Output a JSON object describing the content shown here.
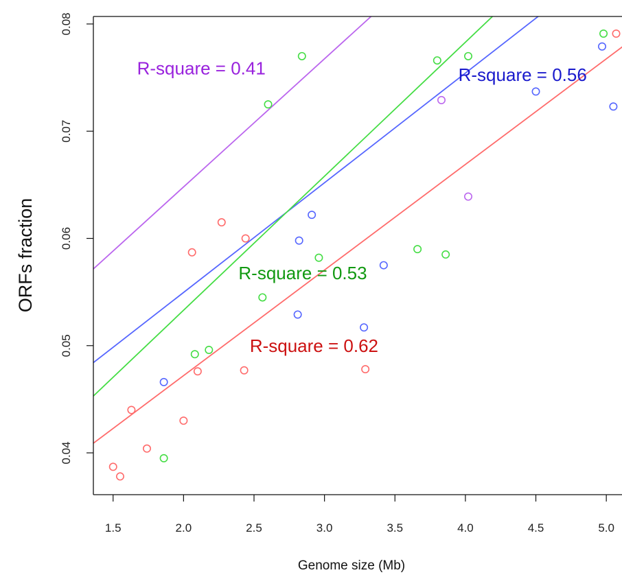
{
  "chart_data": {
    "type": "scatter",
    "title": "",
    "xlabel": "Genome size (Mb)",
    "ylabel": "ORFs fraction",
    "xlim": [
      1.36,
      5.16
    ],
    "ylim": [
      0.0361,
      0.0807
    ],
    "x_ticks": [
      1.5,
      2.0,
      2.5,
      3.0,
      3.5,
      4.0,
      4.5,
      5.0
    ],
    "x_tick_labels": [
      "1.5",
      "2.0",
      "2.5",
      "3.0",
      "3.5",
      "4.0",
      "4.5",
      "5.0"
    ],
    "y_ticks": [
      0.04,
      0.05,
      0.06,
      0.07,
      0.08
    ],
    "y_tick_labels": [
      "0.04",
      "0.05",
      "0.06",
      "0.07",
      "0.08"
    ],
    "grid": false,
    "legend": "none",
    "series": [
      {
        "color": "#ff6b6b",
        "points": [
          [
            1.5,
            0.0387
          ],
          [
            1.55,
            0.0378
          ],
          [
            1.63,
            0.044
          ],
          [
            1.74,
            0.0404
          ],
          [
            2.0,
            0.043
          ],
          [
            2.06,
            0.0587
          ],
          [
            2.1,
            0.0476
          ],
          [
            2.27,
            0.0615
          ],
          [
            2.43,
            0.0477
          ],
          [
            2.44,
            0.06
          ],
          [
            3.29,
            0.0478
          ],
          [
            5.07,
            0.0791
          ]
        ],
        "fit": {
          "slope": 0.00985,
          "intercept": 0.0275
        },
        "annotation": "R-square = 0.62",
        "annotation_color": "#cc1111",
        "annotation_pos": [
          2.47,
          0.0494
        ]
      },
      {
        "color": "#5566ff",
        "points": [
          [
            1.86,
            0.0466
          ],
          [
            2.81,
            0.0529
          ],
          [
            2.82,
            0.0598
          ],
          [
            2.91,
            0.0622
          ],
          [
            3.28,
            0.0517
          ],
          [
            3.42,
            0.0575
          ],
          [
            4.5,
            0.0737
          ],
          [
            4.97,
            0.0779
          ],
          [
            5.05,
            0.0723
          ]
        ],
        "fit": {
          "slope": 0.01023,
          "intercept": 0.0345
        },
        "annotation": "R-square = 0.56",
        "annotation_color": "#1a1acc",
        "annotation_pos": [
          3.95,
          0.0747
        ]
      },
      {
        "color": "#44dd44",
        "points": [
          [
            1.86,
            0.0395
          ],
          [
            2.08,
            0.0492
          ],
          [
            2.18,
            0.0496
          ],
          [
            2.56,
            0.0545
          ],
          [
            2.6,
            0.0725
          ],
          [
            2.84,
            0.077
          ],
          [
            2.96,
            0.0582
          ],
          [
            3.66,
            0.059
          ],
          [
            3.8,
            0.0766
          ],
          [
            3.86,
            0.0585
          ],
          [
            4.02,
            0.077
          ],
          [
            4.98,
            0.0791
          ]
        ],
        "fit": {
          "slope": 0.0125,
          "intercept": 0.0283
        },
        "annotation": "R-square = 0.53",
        "annotation_color": "#119911",
        "annotation_pos": [
          2.39,
          0.0562
        ]
      },
      {
        "color": "#bb66ee",
        "points": [
          [
            3.83,
            0.0729
          ],
          [
            4.02,
            0.0639
          ]
        ],
        "fit": {
          "slope": 0.01195,
          "intercept": 0.0409
        },
        "annotation": "R-square = 0.41",
        "annotation_color": "#9922dd",
        "annotation_pos": [
          1.67,
          0.0753
        ]
      }
    ]
  }
}
